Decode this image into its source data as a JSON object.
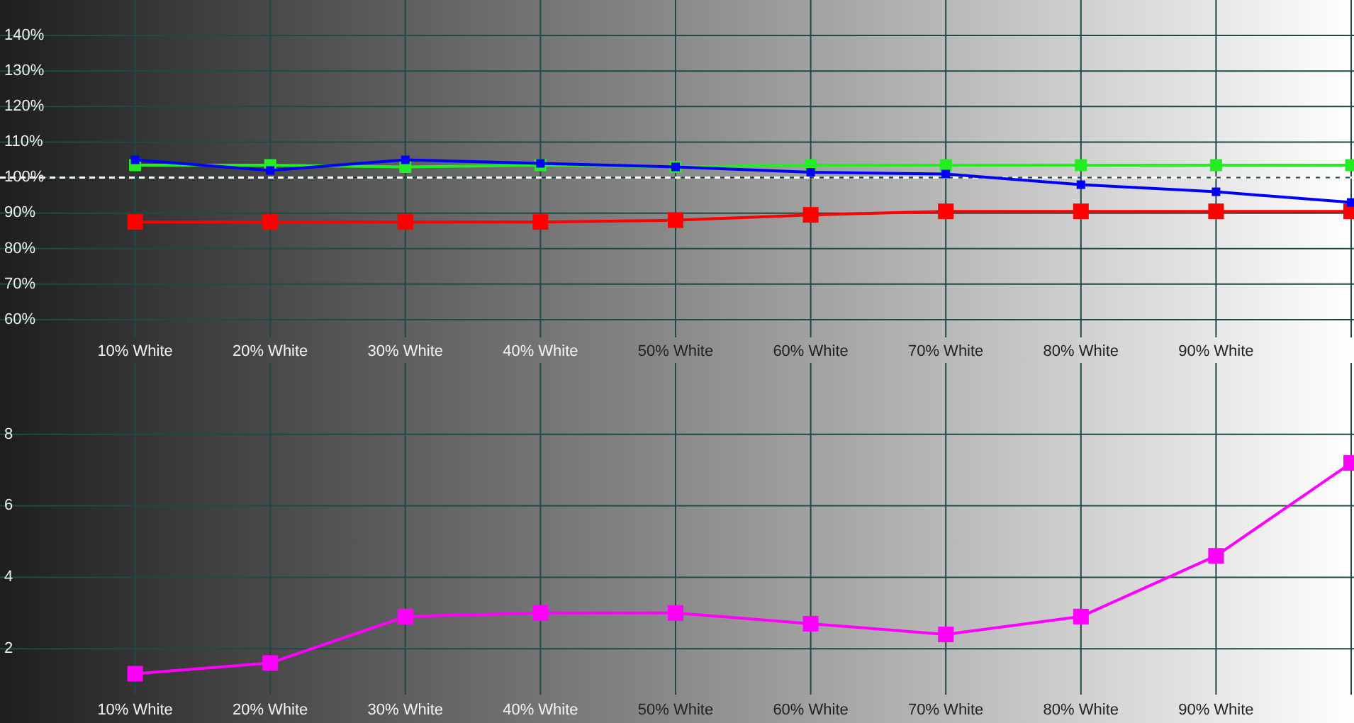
{
  "chart_data": [
    {
      "type": "line",
      "categories": [
        "10% White",
        "20% White",
        "30% White",
        "40% White",
        "50% White",
        "60% White",
        "70% White",
        "80% White",
        "90% White",
        null
      ],
      "series": [
        {
          "color": "#ff0000",
          "values": [
            87.5,
            87.5,
            87.5,
            87.5,
            88,
            89.5,
            90.5,
            90.5,
            90.5,
            90.5
          ]
        },
        {
          "color": "#22ee22",
          "values": [
            103.5,
            103.5,
            103,
            103.5,
            103,
            103.5,
            103.5,
            103.5,
            103.5,
            103.5
          ]
        },
        {
          "color": "#0000ff",
          "values": [
            105,
            102,
            105,
            104,
            103,
            101.5,
            101,
            98,
            96,
            93
          ]
        }
      ],
      "ylim": [
        55,
        150
      ],
      "yticks": [
        {
          "value": 60,
          "label": "60%"
        },
        {
          "value": 70,
          "label": "70%"
        },
        {
          "value": 80,
          "label": "80%"
        },
        {
          "value": 90,
          "label": "90%"
        },
        {
          "value": 100,
          "label": "100%"
        },
        {
          "value": 110,
          "label": "110%"
        },
        {
          "value": 120,
          "label": "120%"
        },
        {
          "value": 130,
          "label": "130%"
        },
        {
          "value": 140,
          "label": "140%"
        }
      ],
      "ref_lines": [
        {
          "axis": "y",
          "value": 100,
          "color": "#ffffff",
          "line_style": "dashed"
        }
      ],
      "grid": true,
      "marker": "square",
      "line_style": "solid"
    },
    {
      "type": "line",
      "categories": [
        "10% White",
        "20% White",
        "30% White",
        "40% White",
        "50% White",
        "60% White",
        "70% White",
        "80% White",
        "90% White",
        null
      ],
      "series": [
        {
          "color": "#ff00ff",
          "values": [
            1.3,
            1.6,
            2.9,
            3,
            3,
            2.7,
            2.4,
            2.9,
            4.6,
            7.2
          ]
        }
      ],
      "ylim": [
        0,
        10
      ],
      "yticks": [
        2,
        4,
        6,
        8
      ],
      "grid": true,
      "marker": "square",
      "line_style": "solid"
    }
  ]
}
